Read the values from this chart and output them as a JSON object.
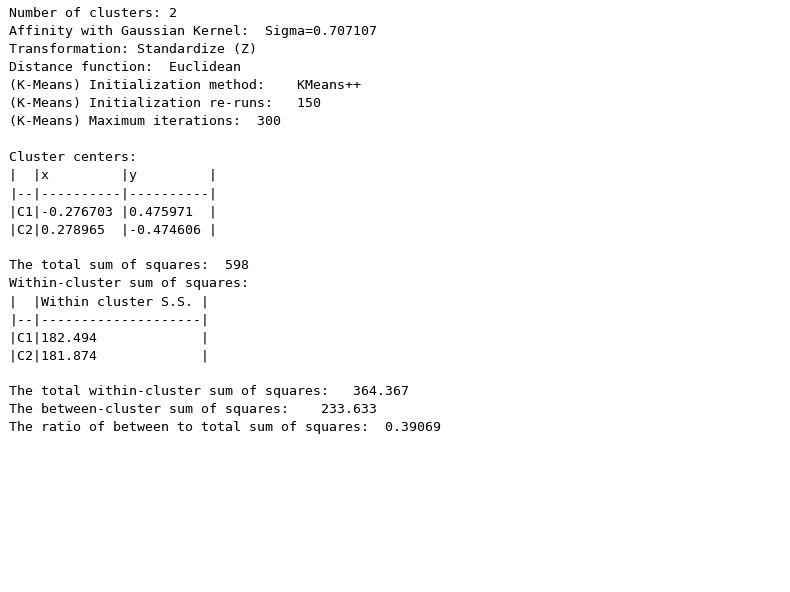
{
  "background_color": "#ffffff",
  "text_color": "#000000",
  "font_family": "DejaVu Sans Mono",
  "font_size": 9.5,
  "content": "Number of clusters: 2\nAffinity with Gaussian Kernel:  Sigma=0.707107\nTransformation: Standardize (Z)\nDistance function:  Euclidean\n(K-Means) Initialization method:    KMeans++\n(K-Means) Initialization re-runs:   150\n(K-Means) Maximum iterations:  300\n\nCluster centers:\n|  |x         |y         |\n|--|----------|----------|\n|C1|-0.276703 |0.475971  |\n|C2|0.278965  |-0.474606 |\n\nThe total sum of squares:  598\nWithin-cluster sum of squares:\n|  |Within cluster S.S. |\n|--|--------------------|\n|C1|182.494             |\n|C2|181.874             |\n\nThe total within-cluster sum of squares:   364.367\nThe between-cluster sum of squares:    233.633\nThe ratio of between to total sum of squares:  0.39069"
}
